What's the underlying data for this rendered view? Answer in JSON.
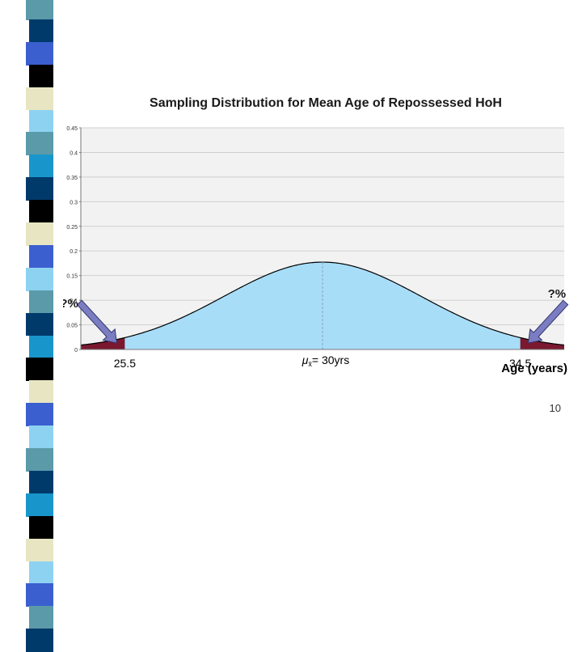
{
  "slide": {
    "number": "10"
  },
  "colors": {
    "curve_fill": "#a8ddf8",
    "curve_stroke": "#000000",
    "tail_fill": "#7a1830",
    "arrow_fill": "#7b7dc2",
    "arrow_stroke": "#34366e",
    "grid": "#cfcfcf",
    "plot_bg": "#f2f2f2",
    "stripe_palette": [
      "#5b9aa8",
      "#003a6b",
      "#3b5fcf",
      "#000000",
      "#e8e6c2",
      "#8ed2f2",
      "#1896cc",
      "#ffffff"
    ]
  },
  "chart_data": {
    "type": "area",
    "title": "Sampling Distribution for Mean Age of Repossessed HoH",
    "xlabel": "Age (years)",
    "ylabel": "",
    "distribution": "normal",
    "mean": 30,
    "sd": 2.25,
    "x_range": [
      24.5,
      35.5
    ],
    "ylim": [
      0,
      0.45
    ],
    "yticks": [
      "0",
      "0.05",
      "0.1",
      "0.15",
      "0.2",
      "0.25",
      "0.3",
      "0.35",
      "0.4",
      "0.45"
    ],
    "grid": true,
    "x_markers": [
      {
        "value": 25.5,
        "label": "25.5"
      },
      {
        "value": 34.5,
        "label": "34.5"
      }
    ],
    "mean_label": {
      "symbol": "μ",
      "subscript": "x̄",
      "text": "= 30yrs"
    },
    "shaded_tails": [
      {
        "side": "left",
        "from": 24.5,
        "to": 25.5
      },
      {
        "side": "right",
        "from": 34.5,
        "to": 35.5
      }
    ],
    "annotations": [
      {
        "text": "?%",
        "side": "left"
      },
      {
        "text": "?%",
        "side": "right"
      }
    ]
  }
}
